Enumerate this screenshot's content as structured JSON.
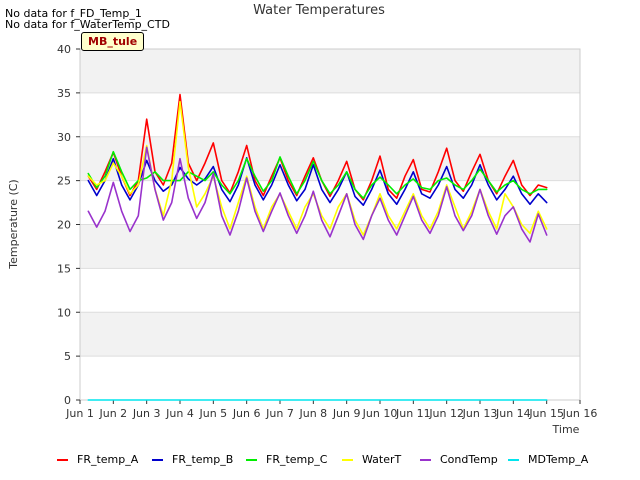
{
  "notes": [
    "No data for f_FD_Temp_1",
    "No data for f_WaterTemp_CTD"
  ],
  "badge": "MB_tule",
  "chart_data": {
    "type": "line",
    "title": "Water Temperatures",
    "xlabel": "Time",
    "ylabel": "Temperature (C)",
    "xlim": [
      1,
      16
    ],
    "ylim": [
      0,
      40
    ],
    "x_ticks": [
      1,
      2,
      3,
      4,
      5,
      6,
      7,
      8,
      9,
      10,
      11,
      12,
      13,
      14,
      15,
      16
    ],
    "x_tick_labels": [
      "Jun 1",
      "Jun 2",
      "Jun 3",
      "Jun 4",
      "Jun 5",
      "Jun 6",
      "Jun 7",
      "Jun 8",
      "Jun 9",
      "Jun 10",
      "Jun 11",
      "Jun 12",
      "Jun 13",
      "Jun 14",
      "Jun 15",
      "Jun 16"
    ],
    "y_ticks": [
      0,
      5,
      10,
      15,
      20,
      25,
      30,
      35,
      40
    ],
    "y_tick_labels": [
      "0",
      "5",
      "10",
      "15",
      "20",
      "25",
      "30",
      "35",
      "40"
    ],
    "grid": true,
    "legend_position": "bottom",
    "series": [
      {
        "name": "FR_temp_A",
        "color": "#ff0000",
        "x": [
          1.25,
          1.5,
          1.75,
          2.0,
          2.25,
          2.5,
          2.75,
          3.0,
          3.25,
          3.5,
          3.75,
          4.0,
          4.25,
          4.5,
          4.75,
          5.0,
          5.25,
          5.5,
          5.75,
          6.0,
          6.25,
          6.5,
          6.75,
          7.0,
          7.25,
          7.5,
          7.75,
          8.0,
          8.25,
          8.5,
          8.75,
          9.0,
          9.25,
          9.5,
          9.75,
          10.0,
          10.25,
          10.5,
          10.75,
          11.0,
          11.25,
          11.5,
          11.75,
          12.0,
          12.25,
          12.5,
          12.75,
          13.0,
          13.25,
          13.5,
          13.75,
          14.0,
          14.25,
          14.5,
          14.75,
          15.0
        ],
        "y": [
          25.5,
          24.0,
          26.0,
          28.2,
          25.5,
          23.3,
          25.0,
          32.0,
          26.0,
          24.5,
          27.0,
          34.8,
          27.0,
          25.0,
          27.0,
          29.3,
          25.0,
          23.6,
          26.0,
          29.0,
          25.0,
          23.3,
          25.5,
          27.6,
          25.0,
          23.3,
          25.5,
          27.6,
          25.0,
          23.2,
          25.0,
          27.2,
          24.0,
          22.8,
          25.0,
          27.8,
          24.0,
          23.0,
          25.5,
          27.4,
          24.0,
          23.7,
          26.0,
          28.7,
          25.0,
          23.8,
          26.0,
          28.0,
          25.0,
          23.5,
          25.5,
          27.3,
          24.5,
          23.3,
          24.5,
          24.2
        ]
      },
      {
        "name": "FR_temp_B",
        "color": "#0000cc",
        "x": [
          1.25,
          1.5,
          1.75,
          2.0,
          2.25,
          2.5,
          2.75,
          3.0,
          3.25,
          3.5,
          3.75,
          4.0,
          4.25,
          4.5,
          4.75,
          5.0,
          5.25,
          5.5,
          5.75,
          6.0,
          6.25,
          6.5,
          6.75,
          7.0,
          7.25,
          7.5,
          7.75,
          8.0,
          8.25,
          8.5,
          8.75,
          9.0,
          9.25,
          9.5,
          9.75,
          10.0,
          10.25,
          10.5,
          10.75,
          11.0,
          11.25,
          11.5,
          11.75,
          12.0,
          12.25,
          12.5,
          12.75,
          13.0,
          13.25,
          13.5,
          13.75,
          14.0,
          14.25,
          14.5,
          14.75,
          15.0
        ],
        "y": [
          25.0,
          23.3,
          25.0,
          27.5,
          24.5,
          22.8,
          24.5,
          27.3,
          25.0,
          23.8,
          24.5,
          26.5,
          25.2,
          24.5,
          25.2,
          26.6,
          24.0,
          22.6,
          24.5,
          27.6,
          24.5,
          22.8,
          24.5,
          26.8,
          24.5,
          22.7,
          24.0,
          26.8,
          24.0,
          22.5,
          24.0,
          26.0,
          23.2,
          22.2,
          24.0,
          26.2,
          23.5,
          22.3,
          24.0,
          26.0,
          23.5,
          23.0,
          24.5,
          26.6,
          24.0,
          23.0,
          24.5,
          26.8,
          24.5,
          22.8,
          24.0,
          25.5,
          23.5,
          22.3,
          23.5,
          22.5
        ]
      },
      {
        "name": "FR_temp_C",
        "color": "#00ee00",
        "x": [
          1.25,
          1.5,
          1.75,
          2.0,
          2.25,
          2.5,
          2.75,
          3.0,
          3.25,
          3.5,
          3.75,
          4.0,
          4.25,
          4.5,
          4.75,
          5.0,
          5.25,
          5.5,
          5.75,
          6.0,
          6.25,
          6.5,
          6.75,
          7.0,
          7.25,
          7.5,
          7.75,
          8.0,
          8.25,
          8.5,
          8.75,
          9.0,
          9.25,
          9.5,
          9.75,
          10.0,
          10.25,
          10.5,
          10.75,
          11.0,
          11.25,
          11.5,
          11.75,
          12.0,
          12.25,
          12.5,
          12.75,
          13.0,
          13.25,
          13.5,
          13.75,
          14.0,
          14.25,
          14.5,
          14.75,
          15.0
        ],
        "y": [
          25.8,
          24.2,
          25.5,
          28.3,
          26.0,
          24.0,
          25.0,
          25.3,
          26.0,
          25.0,
          25.0,
          25.0,
          26.0,
          25.5,
          25.0,
          26.0,
          24.5,
          23.5,
          25.0,
          27.5,
          25.5,
          23.8,
          25.0,
          27.7,
          25.5,
          23.5,
          25.0,
          27.2,
          25.0,
          23.5,
          24.5,
          26.0,
          24.0,
          23.0,
          24.5,
          25.4,
          24.5,
          23.5,
          24.5,
          25.2,
          24.2,
          24.0,
          25.0,
          25.3,
          24.5,
          24.0,
          25.0,
          26.3,
          25.0,
          23.7,
          24.5,
          25.0,
          24.0,
          23.5,
          24.0,
          24.0
        ]
      },
      {
        "name": "WaterT",
        "color": "#ffff00",
        "x": [
          1.25,
          1.5,
          1.75,
          2.0,
          2.25,
          2.5,
          2.75,
          3.0,
          3.25,
          3.5,
          3.75,
          4.0,
          4.25,
          4.5,
          4.75,
          5.0,
          5.25,
          5.5,
          5.75,
          6.0,
          6.25,
          6.5,
          6.75,
          7.0,
          7.25,
          7.5,
          7.75,
          8.0,
          8.25,
          8.5,
          8.75,
          9.0,
          9.25,
          9.5,
          9.75,
          10.0,
          10.25,
          10.5,
          10.75,
          11.0,
          11.25,
          11.5,
          11.75,
          12.0,
          12.25,
          12.5,
          12.75,
          13.0,
          13.25,
          13.5,
          13.75,
          14.0,
          14.25,
          14.5,
          14.75,
          15.0
        ],
        "y": [
          25.5,
          24.5,
          25.0,
          27.0,
          25.5,
          23.5,
          24.5,
          29.0,
          24.0,
          21.0,
          25.0,
          34.0,
          26.5,
          22.0,
          23.5,
          25.5,
          22.0,
          19.5,
          22.5,
          25.5,
          22.0,
          19.5,
          22.0,
          23.5,
          21.5,
          19.5,
          22.0,
          23.5,
          21.0,
          19.5,
          22.0,
          23.5,
          20.5,
          18.8,
          21.0,
          23.5,
          21.0,
          19.5,
          21.5,
          23.5,
          21.0,
          19.5,
          21.5,
          24.5,
          22.0,
          19.5,
          21.5,
          24.0,
          21.5,
          19.5,
          23.5,
          22.0,
          20.0,
          19.0,
          21.5,
          19.5
        ]
      },
      {
        "name": "CondTemp",
        "color": "#9933cc",
        "x": [
          1.25,
          1.5,
          1.75,
          2.0,
          2.25,
          2.5,
          2.75,
          3.0,
          3.25,
          3.5,
          3.75,
          4.0,
          4.25,
          4.5,
          4.75,
          5.0,
          5.25,
          5.5,
          5.75,
          6.0,
          6.25,
          6.5,
          6.75,
          7.0,
          7.25,
          7.5,
          7.75,
          8.0,
          8.25,
          8.5,
          8.75,
          9.0,
          9.25,
          9.5,
          9.75,
          10.0,
          10.25,
          10.5,
          10.75,
          11.0,
          11.25,
          11.5,
          11.75,
          12.0,
          12.25,
          12.5,
          12.75,
          13.0,
          13.25,
          13.5,
          13.75,
          14.0,
          14.25,
          14.5,
          14.75,
          15.0
        ],
        "y": [
          21.5,
          19.7,
          21.5,
          24.8,
          21.5,
          19.2,
          21.0,
          28.8,
          24.0,
          20.5,
          22.5,
          27.5,
          23.0,
          20.7,
          22.5,
          25.8,
          21.0,
          18.8,
          21.5,
          25.3,
          21.5,
          19.2,
          21.5,
          23.6,
          21.0,
          19.0,
          21.0,
          23.8,
          20.5,
          18.6,
          21.0,
          23.5,
          20.0,
          18.3,
          21.0,
          23.0,
          20.5,
          18.8,
          21.0,
          23.2,
          20.5,
          19.0,
          21.0,
          24.3,
          21.0,
          19.3,
          21.0,
          24.0,
          21.0,
          18.9,
          21.0,
          22.0,
          19.5,
          18.0,
          21.2,
          18.8
        ]
      },
      {
        "name": "MDTemp_A",
        "color": "#00e5ee",
        "x": [
          1.25,
          15.0
        ],
        "y": [
          0,
          0
        ]
      }
    ]
  }
}
